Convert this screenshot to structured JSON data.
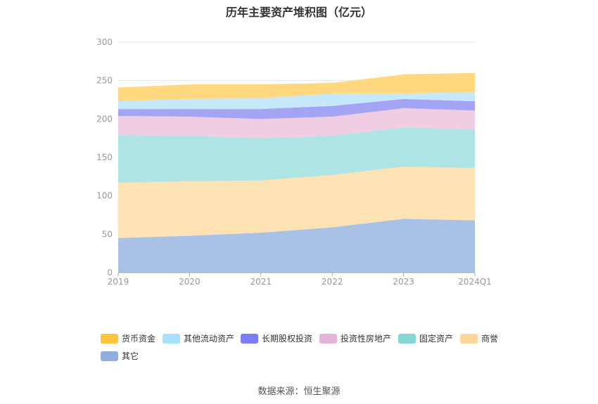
{
  "title": "历年主要资产堆积图（亿元）",
  "source": "数据来源：恒生聚源",
  "chart_data": {
    "type": "area",
    "stacked": true,
    "x": [
      "2019",
      "2020",
      "2021",
      "2022",
      "2023",
      "2024Q1"
    ],
    "yticks": [
      0,
      50,
      100,
      150,
      200,
      250,
      300
    ],
    "ylim": [
      0,
      300
    ],
    "grid": true,
    "legend_position": "bottom",
    "series": [
      {
        "name": "其它",
        "color": "#aac1e6",
        "values": [
          45,
          48,
          52,
          59,
          70,
          68
        ]
      },
      {
        "name": "商誉",
        "color": "#fde3b3",
        "values": [
          72,
          71,
          68,
          68,
          68,
          68
        ]
      },
      {
        "name": "固定资产",
        "color": "#aee4e3",
        "values": [
          62,
          59,
          55,
          51,
          51,
          50
        ]
      },
      {
        "name": "投资性房地产",
        "color": "#f0cde3",
        "values": [
          25,
          25,
          25,
          25,
          25,
          25
        ]
      },
      {
        "name": "长期股权投资",
        "color": "#a3a5f4",
        "values": [
          9,
          10,
          13,
          14,
          12,
          12
        ]
      },
      {
        "name": "其他流动资产",
        "color": "#c5e8fa",
        "values": [
          10,
          13,
          14,
          16,
          7,
          12
        ]
      },
      {
        "name": "货币资金",
        "color": "#ffd880",
        "values": [
          18,
          19,
          18,
          14,
          25,
          25
        ]
      }
    ]
  },
  "legend": [
    {
      "name": "货币资金",
      "color": "#ffc53d"
    },
    {
      "name": "其他流动资产",
      "color": "#a6e0fb"
    },
    {
      "name": "长期股权投资",
      "color": "#7a7ef2"
    },
    {
      "name": "投资性房地产",
      "color": "#e7b4d9"
    },
    {
      "name": "固定资产",
      "color": "#84d7d5"
    },
    {
      "name": "商誉",
      "color": "#fdd69a"
    },
    {
      "name": "其它",
      "color": "#8faedf"
    }
  ]
}
